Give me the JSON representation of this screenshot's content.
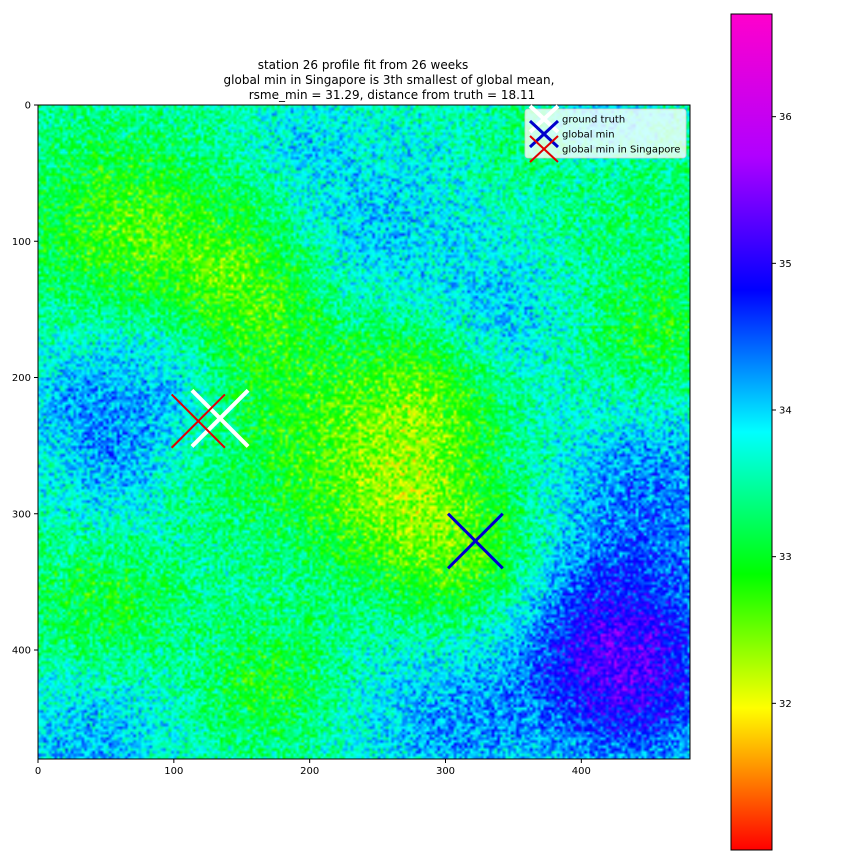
{
  "chart_data": {
    "type": "heatmap",
    "title_lines": [
      "station 26 profile fit from 26 weeks",
      "global min in Singapore is 3th smallest of global mean,",
      "rsme_min = 31.29, distance from truth = 18.11"
    ],
    "xlabel": "",
    "ylabel": "",
    "xlim": [
      0,
      480
    ],
    "ylim": [
      480,
      0
    ],
    "xticks": [
      0,
      100,
      200,
      300,
      400
    ],
    "yticks": [
      0,
      100,
      200,
      300,
      400
    ],
    "colorbar": {
      "range": [
        31.0,
        36.7
      ],
      "ticks": [
        32,
        33,
        34,
        35,
        36
      ],
      "colormap": "hsv-like (red → yellow → green → cyan → blue → magenta)"
    },
    "field_description": "noisy value field mostly 33–34; warmer (yellow/orange) patches, cooler (cyan/blue) patches toward lower right",
    "markers": [
      {
        "name": "ground truth",
        "x": 134,
        "y": 230,
        "color": "#ffffff"
      },
      {
        "name": "global min",
        "x": 322,
        "y": 320,
        "color": "#0000cc"
      },
      {
        "name": "global min in Singapore",
        "x": 118,
        "y": 232,
        "color": "#e00000"
      }
    ],
    "legend": {
      "placement": "top-right",
      "entries": [
        {
          "label": "ground truth",
          "color": "#ffffff"
        },
        {
          "label": "global min",
          "color": "#0000cc"
        },
        {
          "label": "global min in Singapore",
          "color": "#e00000"
        }
      ]
    }
  }
}
